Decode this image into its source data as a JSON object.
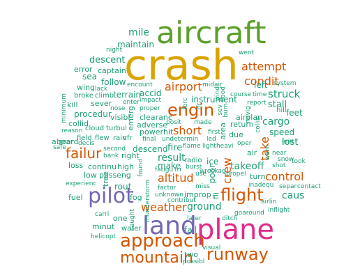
{
  "words": [
    {
      "text": "crash",
      "color": "#d9a400"
    },
    {
      "text": "aircraft",
      "color": "#5ca02c"
    },
    {
      "text": "plane",
      "color": "#e02b8a"
    },
    {
      "text": "land",
      "color": "#7466b3"
    },
    {
      "text": "pilot",
      "color": "#7466b3"
    },
    {
      "text": "approach",
      "color": "#d45500"
    },
    {
      "text": "flight",
      "color": "#d45500"
    },
    {
      "text": "engin",
      "color": "#d45500"
    },
    {
      "text": "runway",
      "color": "#d45500"
    },
    {
      "text": "mountain",
      "color": "#d45500"
    },
    {
      "text": "failur",
      "color": "#d45500"
    },
    {
      "text": "attempt",
      "color": "#d45500"
    },
    {
      "text": "weather",
      "color": "#d45500"
    },
    {
      "text": "control",
      "color": "#d45500"
    },
    {
      "text": "altitud",
      "color": "#d45500"
    },
    {
      "text": "condit",
      "color": "#d45500"
    },
    {
      "text": "airport",
      "color": "#d45500"
    },
    {
      "text": "short",
      "color": "#d45500"
    },
    {
      "text": "crew",
      "color": "#d45500"
    },
    {
      "text": "take",
      "color": "#d45500"
    },
    {
      "text": "mile",
      "color": "#1c9e77"
    },
    {
      "text": "maintain",
      "color": "#1c9e77"
    },
    {
      "text": "descent",
      "color": "#1c9e77"
    },
    {
      "text": "error",
      "color": "#1c9e77"
    },
    {
      "text": "captain",
      "color": "#1c9e77"
    },
    {
      "text": "sea",
      "color": "#1c9e77"
    },
    {
      "text": "follow",
      "color": "#1c9e77"
    },
    {
      "text": "wing",
      "color": "#1c9e77"
    },
    {
      "text": "night",
      "color": "#1c9e77"
    },
    {
      "text": "went",
      "color": "#1c9e77"
    },
    {
      "text": "left",
      "color": "#1c9e77"
    },
    {
      "text": "struck",
      "color": "#1c9e77"
    },
    {
      "text": "stall",
      "color": "#1c9e77"
    },
    {
      "text": "instrument",
      "color": "#1c9e77"
    },
    {
      "text": "accid",
      "color": "#1c9e77"
    },
    {
      "text": "terrain",
      "color": "#1c9e77"
    },
    {
      "text": "encount",
      "color": "#1c9e77"
    },
    {
      "text": "midair",
      "color": "#1c9e77"
    },
    {
      "text": "wind",
      "color": "#1c9e77"
    },
    {
      "text": "course",
      "color": "#1c9e77"
    },
    {
      "text": "time",
      "color": "#1c9e77"
    },
    {
      "text": "system",
      "color": "#1c9e77"
    },
    {
      "text": "report",
      "color": "#1c9e77"
    },
    {
      "text": "lack",
      "color": "#1c9e77"
    },
    {
      "text": "broke",
      "color": "#1c9e77"
    },
    {
      "text": "climb",
      "color": "#1c9e77"
    },
    {
      "text": "impact",
      "color": "#1c9e77"
    },
    {
      "text": "sever",
      "color": "#1c9e77"
    },
    {
      "text": "enter",
      "color": "#1c9e77"
    },
    {
      "text": "kill",
      "color": "#1c9e77"
    },
    {
      "text": "nose",
      "color": "#1c9e77"
    },
    {
      "text": "proper",
      "color": "#1c9e77"
    },
    {
      "text": "procedur",
      "color": "#1c9e77"
    },
    {
      "text": "collid",
      "color": "#1c9e77"
    },
    {
      "text": "visibl",
      "color": "#1c9e77"
    },
    {
      "text": "clearanc",
      "color": "#1c9e77"
    },
    {
      "text": "airplan",
      "color": "#1c9e77"
    },
    {
      "text": "return",
      "color": "#1c9e77"
    },
    {
      "text": "hill",
      "color": "#1c9e77"
    },
    {
      "text": "feet",
      "color": "#1c9e77"
    },
    {
      "text": "cargo",
      "color": "#1c9e77"
    },
    {
      "text": "speed",
      "color": "#1c9e77"
    },
    {
      "text": "initi",
      "color": "#1c9e77"
    },
    {
      "text": "lost",
      "color": "#1c9e77"
    },
    {
      "text": "reason",
      "color": "#1c9e77"
    },
    {
      "text": "cloud",
      "color": "#1c9e77"
    },
    {
      "text": "turbul",
      "color": "#1c9e77"
    },
    {
      "text": "power",
      "color": "#1c9e77"
    },
    {
      "text": "adverse",
      "color": "#1c9e77"
    },
    {
      "text": "hit",
      "color": "#1c9e77"
    },
    {
      "text": "posit",
      "color": "#1c9e77"
    },
    {
      "text": "made",
      "color": "#1c9e77"
    },
    {
      "text": "first",
      "color": "#1c9e77"
    },
    {
      "text": "due",
      "color": "#1c9e77"
    },
    {
      "text": "aboard",
      "color": "#1c9e77"
    },
    {
      "text": "field",
      "color": "#1c9e77"
    },
    {
      "text": "flew",
      "color": "#1c9e77"
    },
    {
      "text": "rain",
      "color": "#1c9e77"
    },
    {
      "text": "vfr",
      "color": "#1c9e77"
    },
    {
      "text": "final",
      "color": "#1c9e77"
    },
    {
      "text": "undetermin",
      "color": "#1c9e77"
    },
    {
      "text": "led",
      "color": "#1c9e77"
    },
    {
      "text": "oper",
      "color": "#1c9e77"
    },
    {
      "text": "safe",
      "color": "#1c9e77"
    },
    {
      "text": "gear",
      "color": "#1c9e77"
    },
    {
      "text": "decis",
      "color": "#1c9e77"
    },
    {
      "text": "second",
      "color": "#1c9e77"
    },
    {
      "text": "bank",
      "color": "#1c9e77"
    },
    {
      "text": "right",
      "color": "#1c9e77"
    },
    {
      "text": "descend",
      "color": "#1c9e77"
    },
    {
      "text": "fire",
      "color": "#1c9e77"
    },
    {
      "text": "flame",
      "color": "#1c9e77"
    },
    {
      "text": "lightheavi",
      "color": "#1c9e77"
    },
    {
      "text": "air",
      "color": "#1c9e77"
    },
    {
      "text": "near",
      "color": "#1c9e77"
    },
    {
      "text": "snow",
      "color": "#1c9e77"
    },
    {
      "text": "took",
      "color": "#1c9e77"
    },
    {
      "text": "shot",
      "color": "#1c9e77"
    },
    {
      "text": "result",
      "color": "#1c9e77"
    },
    {
      "text": "radio",
      "color": "#1c9e77"
    },
    {
      "text": "ice",
      "color": "#1c9e77"
    },
    {
      "text": "takeoff",
      "color": "#1c9e77"
    },
    {
      "text": "loss",
      "color": "#1c9e77"
    },
    {
      "text": "continu",
      "color": "#1c9e77"
    },
    {
      "text": "high",
      "color": "#1c9e77"
    },
    {
      "text": "make",
      "color": "#1c9e77"
    },
    {
      "text": "wreckag",
      "color": "#1c9e77"
    },
    {
      "text": "propel",
      "color": "#1c9e77"
    },
    {
      "text": "low",
      "color": "#1c9e77"
    },
    {
      "text": "passeng",
      "color": "#1c9e77"
    },
    {
      "text": "fatigu",
      "color": "#1c9e77"
    },
    {
      "text": "tri",
      "color": "#1c9e77"
    },
    {
      "text": "burst",
      "color": "#1c9e77"
    },
    {
      "text": "use",
      "color": "#1c9e77"
    },
    {
      "text": "turn",
      "color": "#1c9e77"
    },
    {
      "text": "inadequ",
      "color": "#1c9e77"
    },
    {
      "text": "experienc",
      "color": "#1c9e77"
    },
    {
      "text": "rout",
      "color": "#1c9e77"
    },
    {
      "text": "factor",
      "color": "#1c9e77"
    },
    {
      "text": "miss",
      "color": "#1c9e77"
    },
    {
      "text": "separ",
      "color": "#1c9e77"
    },
    {
      "text": "contact",
      "color": "#1c9e77"
    },
    {
      "text": "caus",
      "color": "#1c9e77"
    },
    {
      "text": "fuel",
      "color": "#1c9e77"
    },
    {
      "text": "fog",
      "color": "#1c9e77"
    },
    {
      "text": "unknown",
      "color": "#1c9e77"
    },
    {
      "text": "improp",
      "color": "#1c9e77"
    },
    {
      "text": "ground",
      "color": "#1c9e77"
    },
    {
      "text": "contribut",
      "color": "#1c9e77"
    },
    {
      "text": "carri",
      "color": "#1c9e77"
    },
    {
      "text": "airlin",
      "color": "#1c9e77"
    },
    {
      "text": "one",
      "color": "#1c9e77"
    },
    {
      "text": "later",
      "color": "#1c9e77"
    },
    {
      "text": "goaround",
      "color": "#1c9e77"
    },
    {
      "text": "inflight",
      "color": "#1c9e77"
    },
    {
      "text": "minut",
      "color": "#1c9e77"
    },
    {
      "text": "water",
      "color": "#1c9e77"
    },
    {
      "text": "fail",
      "color": "#1c9e77"
    },
    {
      "text": "ditch",
      "color": "#1c9e77"
    },
    {
      "text": "helicopt",
      "color": "#1c9e77"
    },
    {
      "text": "visual",
      "color": "#1c9e77"
    },
    {
      "text": "two",
      "color": "#1c9e77"
    },
    {
      "text": "possibl",
      "color": "#1c9e77"
    },
    {
      "text": "minimum",
      "color": "#1c9e77"
    },
    {
      "text": "emerg",
      "color": "#1c9e77"
    },
    {
      "text": "forc",
      "color": "#1c9e77"
    },
    {
      "text": "flood",
      "color": "#1c9e77"
    },
    {
      "text": "ifr",
      "color": "#1c9e77"
    },
    {
      "text": "area",
      "color": "#1c9e77"
    },
    {
      "text": "poor",
      "color": "#1c9e77"
    },
    {
      "text": "found",
      "color": "#1c9e77"
    },
    {
      "text": "tree",
      "color": "#1c9e77"
    },
    {
      "text": "thunderstorm",
      "color": "#1c9e77"
    },
    {
      "text": "caught",
      "color": "#1c9e77"
    },
    {
      "text": "fli",
      "color": "#1c9e77"
    },
    {
      "text": "navig",
      "color": "#1c9e77"
    },
    {
      "text": "collis",
      "color": "#1c9e77"
    },
    {
      "text": "warn",
      "color": "#1c9e77"
    },
    {
      "text": "burn",
      "color": "#1c9e77"
    },
    {
      "text": "sev",
      "color": "#1c9e77"
    }
  ]
}
